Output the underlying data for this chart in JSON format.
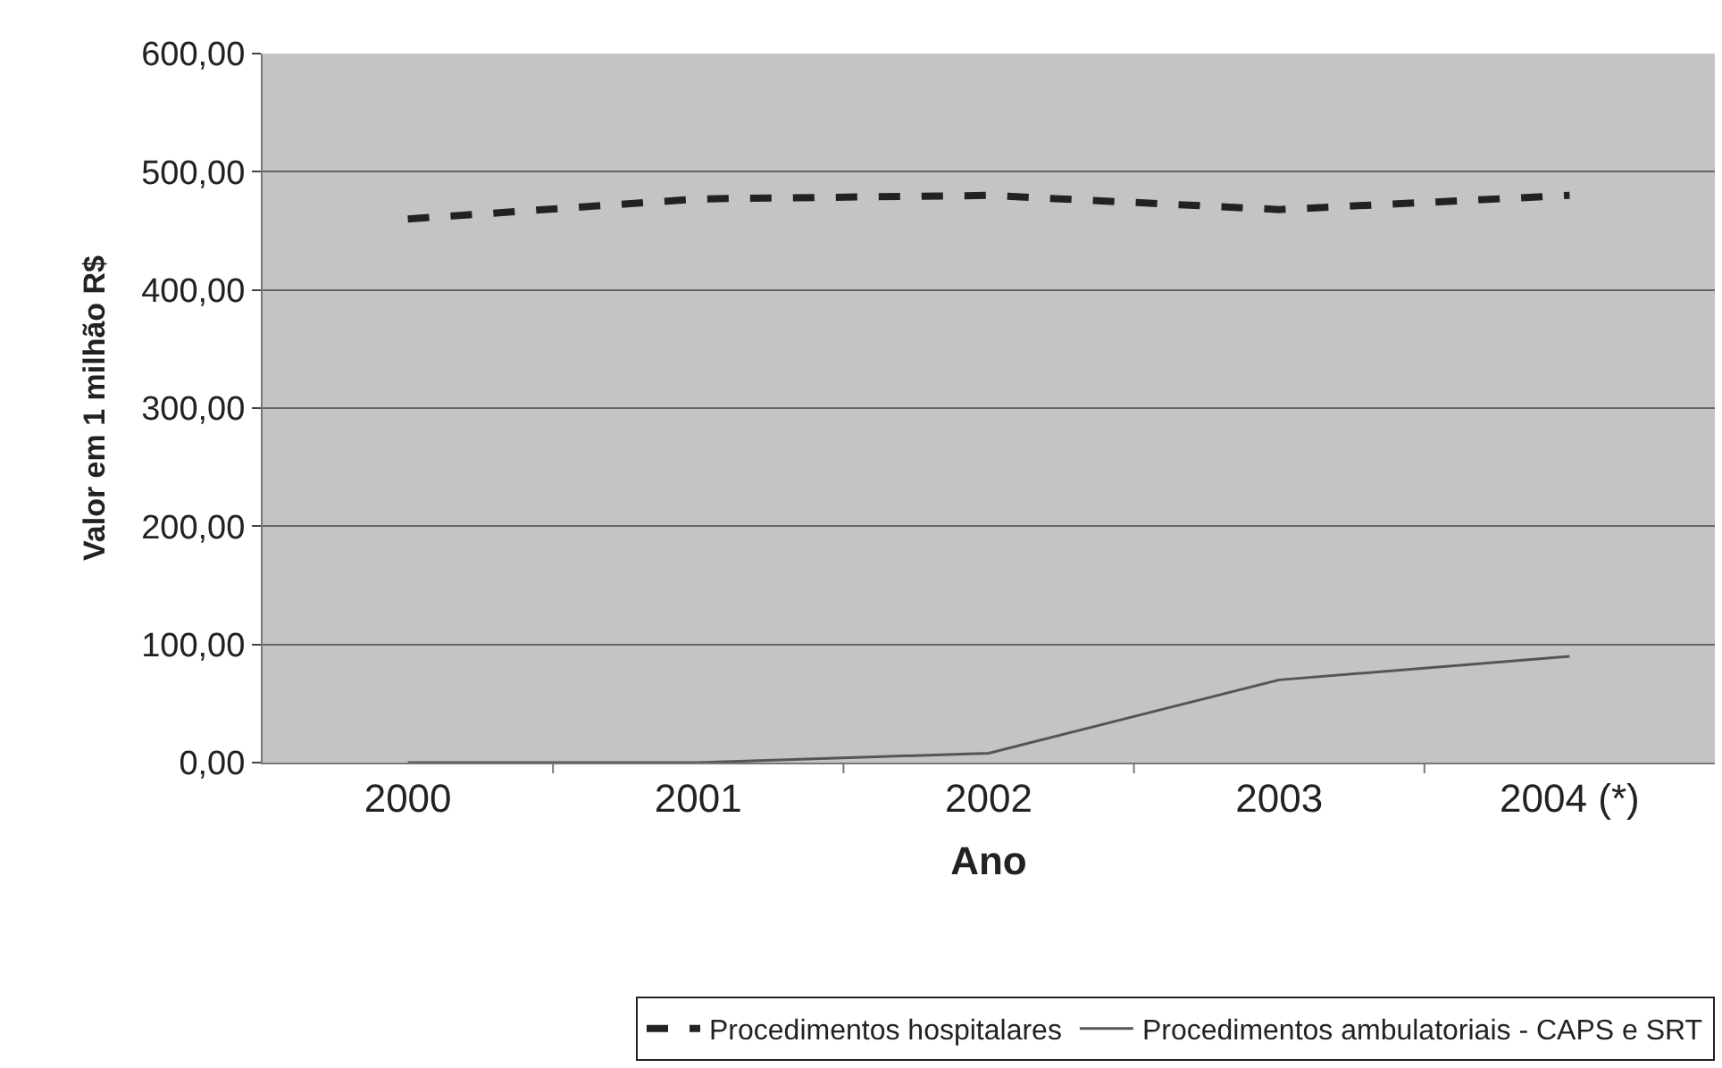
{
  "chart_data": {
    "type": "line",
    "xlabel": "Ano",
    "ylabel": "Valor em 1 milhão R$",
    "categories": [
      "2000",
      "2001",
      "2002",
      "2003",
      "2004 (*)"
    ],
    "series": [
      {
        "name": "Procedimentos hospitalares",
        "color": "#222222",
        "line_style": "dashed",
        "values": [
          460,
          477,
          480,
          468,
          480
        ]
      },
      {
        "name": "Procedimentos ambulatoriais - CAPS e SRT",
        "color": "#555555",
        "line_style": "solid",
        "values": [
          0,
          0,
          8,
          70,
          90
        ]
      }
    ],
    "ylim": [
      0,
      600
    ],
    "yticks": [
      {
        "value": 0,
        "label": "0,00"
      },
      {
        "value": 100,
        "label": "100,00"
      },
      {
        "value": 200,
        "label": "200,00"
      },
      {
        "value": 300,
        "label": "300,00"
      },
      {
        "value": 400,
        "label": "400,00"
      },
      {
        "value": 500,
        "label": "500,00"
      },
      {
        "value": 600,
        "label": "600,00"
      }
    ],
    "grid": "y",
    "legend": "bottom",
    "marker": "none"
  }
}
